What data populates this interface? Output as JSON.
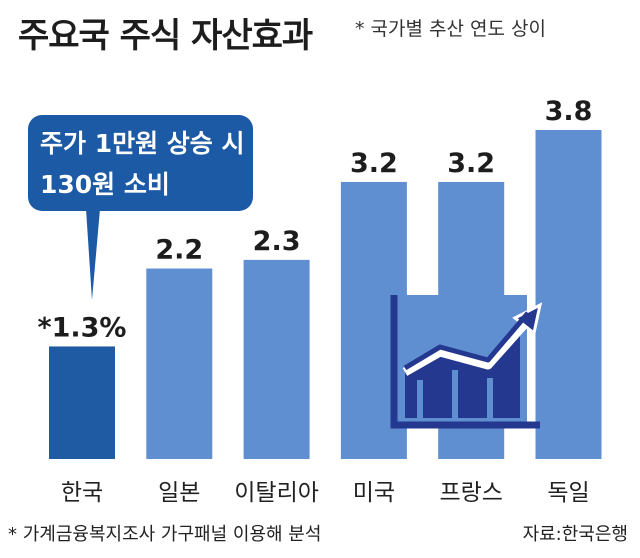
{
  "title": "주요국 주식 자산효과",
  "title_note": "* 국가별 추산 연도 상이",
  "callout": {
    "line1": "주가 1만원 상승 시",
    "line2": "130원 소비"
  },
  "footnote": "* 가계금융복지조사 가구패널 이용해 분석",
  "source": "자료:한국은행",
  "colors": {
    "highlight_bar": "#1f5ba3",
    "bar": "#5f8fd1",
    "callout_bg": "#1d5aa5",
    "icon": "#24388f"
  },
  "chart_data": {
    "type": "bar",
    "categories": [
      "한국",
      "일본",
      "이탈리아",
      "미국",
      "프랑스",
      "독일"
    ],
    "values": [
      1.3,
      2.2,
      2.3,
      3.2,
      3.2,
      3.8
    ],
    "value_labels": [
      "*1.3%",
      "2.2",
      "2.3",
      "3.2",
      "3.2",
      "3.8"
    ],
    "highlight_index": 0,
    "title": "주요국 주식 자산효과",
    "xlabel": "",
    "ylabel": "",
    "grid": false
  },
  "icon_name": "rising-trend-chart-icon"
}
